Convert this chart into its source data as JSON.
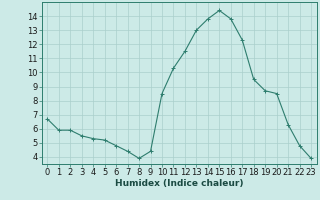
{
  "x": [
    0,
    1,
    2,
    3,
    4,
    5,
    6,
    7,
    8,
    9,
    10,
    11,
    12,
    13,
    14,
    15,
    16,
    17,
    18,
    19,
    20,
    21,
    22,
    23
  ],
  "y": [
    6.7,
    5.9,
    5.9,
    5.5,
    5.3,
    5.2,
    4.8,
    4.4,
    3.9,
    4.4,
    8.5,
    10.3,
    11.5,
    13.0,
    13.8,
    14.4,
    13.8,
    12.3,
    9.5,
    8.7,
    8.5,
    6.3,
    4.8,
    3.9
  ],
  "line_color": "#2e7d6e",
  "marker": "+",
  "marker_size": 3,
  "background_color": "#cceae7",
  "grid_color": "#aacfcc",
  "xlabel": "Humidex (Indice chaleur)",
  "ylim": [
    3.5,
    15.0
  ],
  "xlim": [
    -0.5,
    23.5
  ],
  "yticks": [
    4,
    5,
    6,
    7,
    8,
    9,
    10,
    11,
    12,
    13,
    14
  ],
  "xticks": [
    0,
    1,
    2,
    3,
    4,
    5,
    6,
    7,
    8,
    9,
    10,
    11,
    12,
    13,
    14,
    15,
    16,
    17,
    18,
    19,
    20,
    21,
    22,
    23
  ],
  "xlabel_fontsize": 6.5,
  "tick_fontsize": 6
}
